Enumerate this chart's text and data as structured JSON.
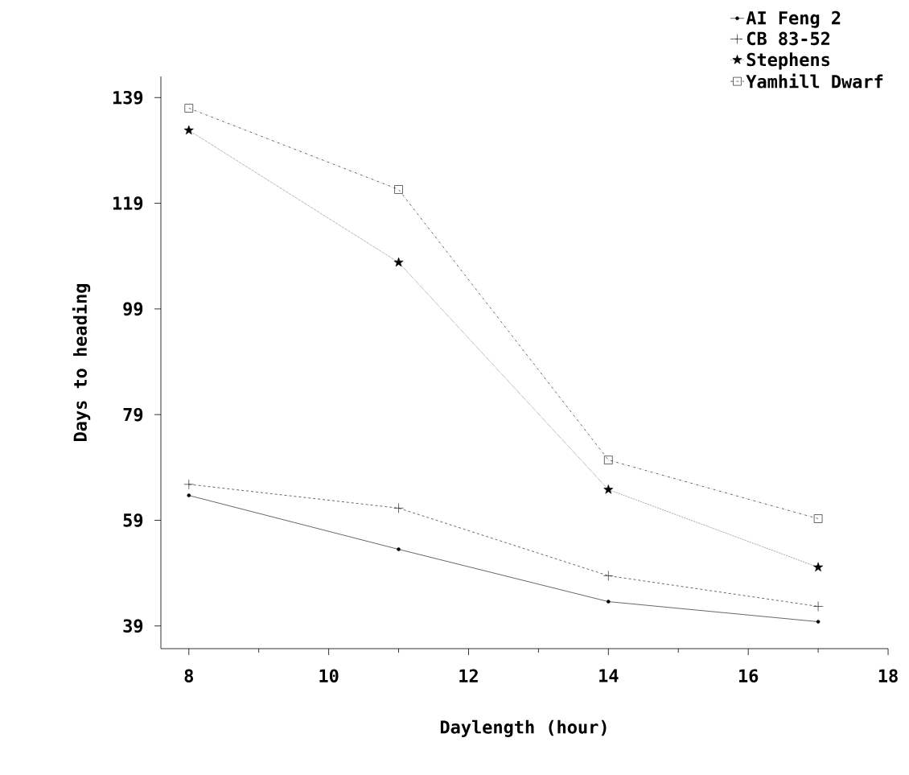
{
  "chart_data": {
    "type": "line",
    "xlabel": "Daylength (hour)",
    "ylabel": "Days to heading",
    "x": [
      8,
      11,
      14,
      17
    ],
    "series": [
      {
        "name": "AI Feng 2",
        "color": "#000000",
        "marker": "circle",
        "line_style": "solid",
        "values": [
          63.7,
          53.5,
          43.6,
          39.8
        ]
      },
      {
        "name": "CB 83-52",
        "color": "#000000",
        "marker": "cross",
        "line_style": "dashed",
        "values": [
          65.8,
          61.3,
          48.5,
          42.7
        ]
      },
      {
        "name": "Stephens",
        "color": "#000000",
        "marker": "star",
        "line_style": "dotted",
        "values": [
          132.8,
          107.8,
          64.8,
          50.1
        ]
      },
      {
        "name": "Yamhill Dwarf",
        "color": "#000000",
        "marker": "square",
        "line_style": "dashdotted",
        "values": [
          137,
          121.6,
          70.4,
          59.3
        ]
      }
    ],
    "xlim": [
      7.6,
      18
    ],
    "xticks": [
      8,
      10,
      12,
      14,
      16,
      18
    ],
    "ylim": [
      34.7,
      143
    ],
    "yticks": [
      39,
      59,
      79,
      99,
      119,
      139
    ],
    "grid": false,
    "legend": "top right"
  }
}
